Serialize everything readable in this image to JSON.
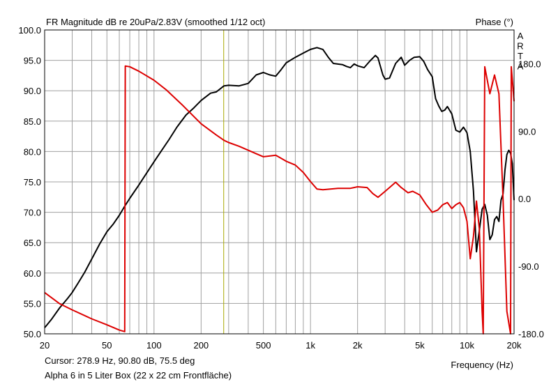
{
  "chart_data": {
    "type": "line",
    "title": "FR Magnitude dB re 20uPa/2.83V (smoothed 1/12 oct)",
    "right_axis_title": "Phase (°)",
    "watermark": "ARTA",
    "xlabel": "Frequency (Hz)",
    "x_scale": "log",
    "xlim": [
      20,
      20000
    ],
    "ylim": [
      50,
      100
    ],
    "y2lim": [
      -180,
      225
    ],
    "grid": true,
    "x_tick_labels": [
      {
        "v": 20,
        "t": "20"
      },
      {
        "v": 50,
        "t": "50"
      },
      {
        "v": 100,
        "t": "100"
      },
      {
        "v": 200,
        "t": "200"
      },
      {
        "v": 500,
        "t": "500"
      },
      {
        "v": 1000,
        "t": "1k"
      },
      {
        "v": 2000,
        "t": "2k"
      },
      {
        "v": 5000,
        "t": "5k"
      },
      {
        "v": 10000,
        "t": "10k"
      },
      {
        "v": 20000,
        "t": "20k"
      }
    ],
    "y_tick_labels": [
      "100.0",
      "95.0",
      "90.0",
      "85.0",
      "80.0",
      "75.0",
      "70.0",
      "65.0",
      "60.0",
      "55.0",
      "50.0"
    ],
    "y_tick_values": [
      100,
      95,
      90,
      85,
      80,
      75,
      70,
      65,
      60,
      55,
      50
    ],
    "y2_tick_labels": [
      {
        "v": 180,
        "t": "180.0"
      },
      {
        "v": 90,
        "t": "90.0"
      },
      {
        "v": 0,
        "t": "0.0"
      },
      {
        "v": -90,
        "t": "-90.0"
      },
      {
        "v": -180,
        "t": "-180.0"
      }
    ],
    "cursor_frequency": 278.9,
    "series": [
      {
        "axis": "left",
        "color": "#000000",
        "points": [
          [
            20,
            51
          ],
          [
            22,
            52.3
          ],
          [
            25,
            54.3
          ],
          [
            28,
            55.8
          ],
          [
            30,
            56.8
          ],
          [
            33,
            58.5
          ],
          [
            36,
            60.1
          ],
          [
            40,
            62.3
          ],
          [
            45,
            64.8
          ],
          [
            50,
            66.8
          ],
          [
            55,
            68.1
          ],
          [
            60,
            69.5
          ],
          [
            65,
            71
          ],
          [
            70,
            72.3
          ],
          [
            80,
            74.5
          ],
          [
            90,
            76.5
          ],
          [
            100,
            78.3
          ],
          [
            110,
            79.9
          ],
          [
            125,
            82
          ],
          [
            140,
            84
          ],
          [
            160,
            86
          ],
          [
            180,
            87.2
          ],
          [
            200,
            88.4
          ],
          [
            230,
            89.6
          ],
          [
            250,
            89.8
          ],
          [
            280,
            90.8
          ],
          [
            300,
            90.9
          ],
          [
            350,
            90.8
          ],
          [
            400,
            91.2
          ],
          [
            450,
            92.6
          ],
          [
            500,
            93
          ],
          [
            550,
            92.6
          ],
          [
            600,
            92.4
          ],
          [
            650,
            93.5
          ],
          [
            700,
            94.6
          ],
          [
            800,
            95.5
          ],
          [
            900,
            96.2
          ],
          [
            1000,
            96.8
          ],
          [
            1100,
            97.1
          ],
          [
            1200,
            96.8
          ],
          [
            1300,
            95.5
          ],
          [
            1400,
            94.5
          ],
          [
            1600,
            94.3
          ],
          [
            1700,
            94
          ],
          [
            1800,
            93.8
          ],
          [
            1900,
            94.4
          ],
          [
            2000,
            94.1
          ],
          [
            2200,
            93.8
          ],
          [
            2400,
            94.9
          ],
          [
            2600,
            95.8
          ],
          [
            2700,
            95.4
          ],
          [
            2900,
            92.6
          ],
          [
            3000,
            91.9
          ],
          [
            3200,
            92.1
          ],
          [
            3500,
            94.5
          ],
          [
            3800,
            95.5
          ],
          [
            4000,
            94.2
          ],
          [
            4300,
            95
          ],
          [
            4600,
            95.5
          ],
          [
            5000,
            95.6
          ],
          [
            5300,
            94.8
          ],
          [
            5600,
            93.5
          ],
          [
            6000,
            92.3
          ],
          [
            6300,
            88.7
          ],
          [
            6600,
            87.5
          ],
          [
            6900,
            86.6
          ],
          [
            7200,
            86.8
          ],
          [
            7500,
            87.4
          ],
          [
            8000,
            86.2
          ],
          [
            8500,
            83.5
          ],
          [
            9000,
            83.2
          ],
          [
            9500,
            84
          ],
          [
            10000,
            83.1
          ],
          [
            10500,
            80
          ],
          [
            11000,
            73.5
          ],
          [
            11500,
            63.5
          ],
          [
            12000,
            67
          ],
          [
            12500,
            70.5
          ],
          [
            13000,
            71.3
          ],
          [
            13500,
            69.5
          ],
          [
            14000,
            65.5
          ],
          [
            14500,
            66.3
          ],
          [
            15000,
            68.8
          ],
          [
            15500,
            69.3
          ],
          [
            16000,
            68.5
          ],
          [
            16500,
            72
          ],
          [
            17000,
            73
          ],
          [
            17500,
            77
          ],
          [
            18000,
            79.5
          ],
          [
            18500,
            80.2
          ],
          [
            19000,
            79.7
          ],
          [
            19500,
            78
          ],
          [
            20000,
            72
          ]
        ]
      },
      {
        "axis": "right",
        "color": "#dd0000",
        "points": [
          [
            20,
            -125
          ],
          [
            25,
            -140
          ],
          [
            30,
            -148
          ],
          [
            40,
            -160
          ],
          [
            50,
            -168
          ],
          [
            60,
            -175
          ],
          [
            65,
            -177
          ],
          [
            65.5,
            177
          ],
          [
            70,
            176
          ],
          [
            80,
            170
          ],
          [
            100,
            158
          ],
          [
            120,
            145
          ],
          [
            150,
            126
          ],
          [
            200,
            100
          ],
          [
            250,
            85
          ],
          [
            280,
            78
          ],
          [
            300,
            75
          ],
          [
            350,
            70
          ],
          [
            450,
            60
          ],
          [
            500,
            56
          ],
          [
            600,
            58
          ],
          [
            700,
            50
          ],
          [
            800,
            45
          ],
          [
            900,
            35
          ],
          [
            1000,
            23
          ],
          [
            1100,
            13
          ],
          [
            1200,
            12
          ],
          [
            1500,
            14
          ],
          [
            1800,
            14
          ],
          [
            2000,
            16
          ],
          [
            2300,
            15
          ],
          [
            2500,
            7
          ],
          [
            2700,
            2
          ],
          [
            3000,
            10
          ],
          [
            3500,
            22
          ],
          [
            3800,
            15
          ],
          [
            4200,
            8
          ],
          [
            4500,
            10
          ],
          [
            5000,
            5
          ],
          [
            5500,
            -8
          ],
          [
            6000,
            -18
          ],
          [
            6500,
            -15
          ],
          [
            7000,
            -8
          ],
          [
            7500,
            -5
          ],
          [
            8000,
            -13
          ],
          [
            8500,
            -8
          ],
          [
            9000,
            -5
          ],
          [
            9500,
            -12
          ],
          [
            10000,
            -30
          ],
          [
            10500,
            -80
          ],
          [
            11000,
            -50
          ],
          [
            11500,
            -3
          ],
          [
            12000,
            -40
          ],
          [
            12500,
            -150
          ],
          [
            12700,
            -180
          ],
          [
            13000,
            176
          ],
          [
            14000,
            140
          ],
          [
            15000,
            165
          ],
          [
            16000,
            140
          ],
          [
            17000,
            0
          ],
          [
            18000,
            -150
          ],
          [
            19000,
            -180
          ],
          [
            19200,
            176
          ],
          [
            20000,
            130
          ]
        ]
      }
    ]
  },
  "footer": {
    "cursor_readout": "Cursor: 278.9 Hz, 90.80 dB, 75.5 deg",
    "description": "Alpha 6 in 5 Liter Box (22 x 22 cm Frontfläche)"
  }
}
